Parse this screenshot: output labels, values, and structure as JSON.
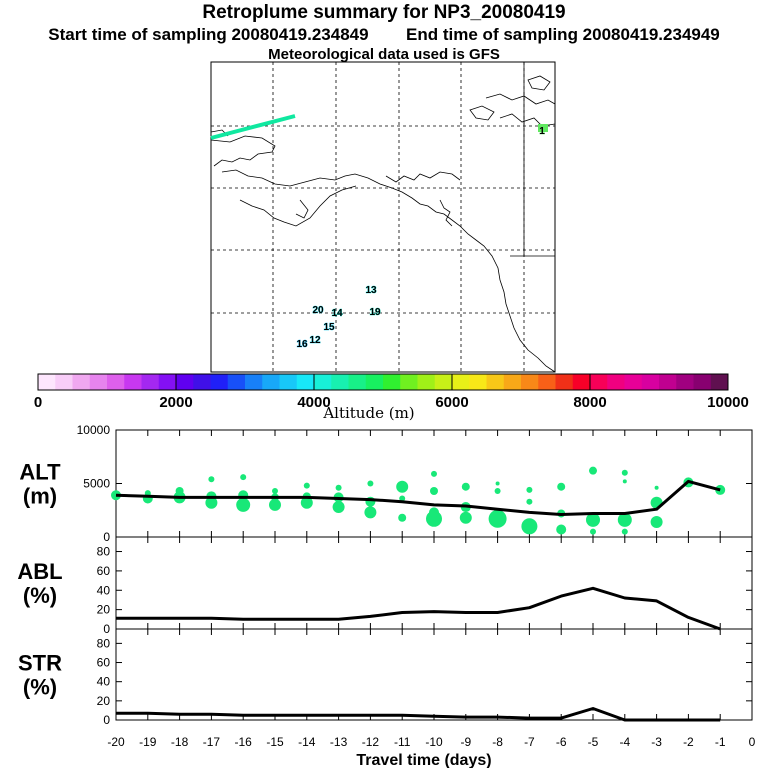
{
  "header": {
    "title": "Retroplume summary for NP3_20080419",
    "start_label": "Start time of sampling 20080419.234849",
    "end_label": "End time of sampling 20080419.234949",
    "met_label": "Meteorological data used is GFS"
  },
  "colors": {
    "marker": "#18e878",
    "line": "#000000",
    "map_line": "#000000",
    "plume": "#10e8a0"
  },
  "chart_data": [
    {
      "id": "map",
      "type": "scatter",
      "title": "retroplume position labels (day numbers)",
      "labels": [
        {
          "text": "13",
          "color": "#18e8e0"
        },
        {
          "text": "20",
          "color": "#18d8e8"
        },
        {
          "text": "14",
          "color": "#18e8d8"
        },
        {
          "text": "19",
          "color": "#18e8c8"
        },
        {
          "text": "15",
          "color": "#18d0f0"
        },
        {
          "text": "16",
          "color": "#18c0f8"
        },
        {
          "text": "12",
          "color": "#18d8f0"
        },
        {
          "text": "1",
          "color": "#60e860"
        }
      ]
    },
    {
      "id": "colorbar",
      "type": "heatmap",
      "xlabel": "Altitude (m)",
      "range": [
        0,
        10000
      ],
      "tick_labels": [
        "0",
        "2000",
        "4000",
        "6000",
        "8000",
        "10000"
      ],
      "tick_values": [
        0,
        2000,
        4000,
        6000,
        8000,
        10000
      ],
      "colors": [
        "#fde6fd",
        "#f8cdf8",
        "#f0a8f0",
        "#e784ee",
        "#de60ec",
        "#c838f0",
        "#a428f0",
        "#8410f4",
        "#6000f0",
        "#4010e8",
        "#2020f8",
        "#1850f8",
        "#1880f8",
        "#18a8f8",
        "#18c8f8",
        "#18e8f8",
        "#18f0d8",
        "#18f0b0",
        "#18f088",
        "#18f060",
        "#30f030",
        "#70f020",
        "#a0f018",
        "#c8f018",
        "#e8f018",
        "#f8e818",
        "#f8c818",
        "#f8a818",
        "#f88818",
        "#f86018",
        "#f03018",
        "#f80028",
        "#f80058",
        "#f00080",
        "#e80098",
        "#d800a0",
        "#c00090",
        "#a00080",
        "#880070",
        "#601050"
      ]
    },
    {
      "id": "alt",
      "type": "line",
      "ylabel": "ALT\n(m)",
      "ylim": [
        0,
        10000
      ],
      "tick_labels": [
        "0",
        "5000",
        "10000"
      ],
      "tick_values": [
        0,
        5000,
        10000
      ],
      "x": [
        -20,
        -19,
        -18,
        -17,
        -16,
        -15,
        -14,
        -13,
        -12,
        -11,
        -10,
        -9,
        -8,
        -7,
        -6,
        -5,
        -4,
        -3,
        -2,
        -1
      ],
      "values": [
        3900,
        3800,
        3700,
        3700,
        3700,
        3700,
        3700,
        3600,
        3500,
        3300,
        3000,
        2900,
        2600,
        2300,
        2100,
        2200,
        2200,
        2600,
        5200,
        4400
      ],
      "points": [
        [
          -20,
          3900,
          5
        ],
        [
          -19,
          3600,
          5
        ],
        [
          -19,
          4100,
          3
        ],
        [
          -18,
          3700,
          6
        ],
        [
          -18,
          4300,
          4
        ],
        [
          -17,
          3200,
          6
        ],
        [
          -17,
          3800,
          5
        ],
        [
          -17,
          5400,
          3
        ],
        [
          -16,
          3000,
          7
        ],
        [
          -16,
          3900,
          5
        ],
        [
          -16,
          5600,
          3
        ],
        [
          -15,
          3000,
          6
        ],
        [
          -15,
          3700,
          4
        ],
        [
          -15,
          4300,
          3
        ],
        [
          -14,
          3200,
          6
        ],
        [
          -14,
          3800,
          4
        ],
        [
          -14,
          4800,
          3
        ],
        [
          -13,
          2800,
          6
        ],
        [
          -13,
          3700,
          5
        ],
        [
          -13,
          4600,
          3
        ],
        [
          -12,
          2300,
          6
        ],
        [
          -12,
          3300,
          5
        ],
        [
          -12,
          5000,
          3
        ],
        [
          -11,
          1800,
          4
        ],
        [
          -11,
          3600,
          3
        ],
        [
          -11,
          4700,
          6
        ],
        [
          -10,
          1700,
          8
        ],
        [
          -10,
          2300,
          5
        ],
        [
          -10,
          4300,
          4
        ],
        [
          -10,
          5900,
          3
        ],
        [
          -9,
          1800,
          6
        ],
        [
          -9,
          2800,
          5
        ],
        [
          -9,
          4700,
          4
        ],
        [
          -8,
          1700,
          9
        ],
        [
          -8,
          4300,
          3
        ],
        [
          -8,
          5000,
          2
        ],
        [
          -7,
          1000,
          8
        ],
        [
          -7,
          3300,
          3
        ],
        [
          -7,
          4400,
          3
        ],
        [
          -6,
          700,
          5
        ],
        [
          -6,
          2200,
          4
        ],
        [
          -6,
          4700,
          4
        ],
        [
          -5,
          500,
          3
        ],
        [
          -5,
          1600,
          7
        ],
        [
          -5,
          6200,
          4
        ],
        [
          -4,
          500,
          3
        ],
        [
          -4,
          1600,
          7
        ],
        [
          -4,
          5200,
          2
        ],
        [
          -4,
          6000,
          3
        ],
        [
          -3,
          1400,
          6
        ],
        [
          -3,
          3200,
          6
        ],
        [
          -3,
          4600,
          2
        ],
        [
          -2,
          5100,
          5
        ],
        [
          -1,
          4400,
          5
        ]
      ]
    },
    {
      "id": "abl",
      "type": "line",
      "ylabel": "ABL\n(%)",
      "ylim": [
        0,
        95
      ],
      "tick_labels": [
        "0",
        "20",
        "40",
        "60",
        "80"
      ],
      "tick_values": [
        0,
        20,
        40,
        60,
        80
      ],
      "x": [
        -20,
        -19,
        -18,
        -17,
        -16,
        -15,
        -14,
        -13,
        -12,
        -11,
        -10,
        -9,
        -8,
        -7,
        -6,
        -5,
        -4,
        -3,
        -2,
        -1
      ],
      "values": [
        11,
        11,
        11,
        11,
        10,
        10,
        10,
        10,
        13,
        17,
        18,
        17,
        17,
        22,
        34,
        42,
        32,
        29,
        12,
        0
      ]
    },
    {
      "id": "str",
      "type": "line",
      "ylabel": "STR\n(%)",
      "ylim": [
        0,
        95
      ],
      "tick_labels": [
        "0",
        "20",
        "40",
        "60",
        "80"
      ],
      "tick_values": [
        0,
        20,
        40,
        60,
        80
      ],
      "xlabel": "Travel time (days)",
      "x": [
        -20,
        -19,
        -18,
        -17,
        -16,
        -15,
        -14,
        -13,
        -12,
        -11,
        -10,
        -9,
        -8,
        -7,
        -6,
        -5,
        -4,
        -3,
        -2,
        -1
      ],
      "values": [
        7,
        7,
        6,
        6,
        5,
        5,
        5,
        5,
        5,
        5,
        4,
        3,
        3,
        2,
        2,
        12,
        0,
        0,
        0,
        0
      ],
      "xticks": [
        "-20",
        "-19",
        "-18",
        "-17",
        "-16",
        "-15",
        "-14",
        "-13",
        "-12",
        "-11",
        "-10",
        "-9",
        "-8",
        "-7",
        "-6",
        "-5",
        "-4",
        "-3",
        "-2",
        "-1",
        "0"
      ]
    }
  ]
}
